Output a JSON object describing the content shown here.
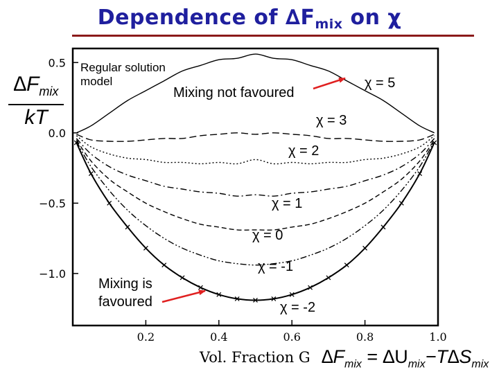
{
  "title": {
    "prefix": "Dependence of ∆F",
    "sub": "mix",
    "suffix": " on χ"
  },
  "y_axis_label": {
    "numerator": "∆F",
    "numerator_sub": "mix",
    "denominator": "kT"
  },
  "equation": {
    "lhs": "∆F",
    "lhs_sub": "mix",
    "mid": " = ∆U",
    "mid_sub": "mix",
    "rhs": "−T∆S",
    "rhs_sub": "mix"
  },
  "annotations": {
    "regular_solution": "Regular solution\nmodel",
    "mixing_not_favoured": "Mixing not favoured",
    "mixing_favoured": "Mixing is\nfavoured"
  },
  "colors": {
    "title": "#1f1f9e",
    "title_rule": "#8b1a1a",
    "arrow": "#e02020",
    "curves": "#000000"
  },
  "chart_data": {
    "type": "line",
    "title": "Dependence of ∆Fmix on χ",
    "xlabel": "Vol. Fraction G",
    "ylabel": "∆Fmix / kT",
    "xlim": [
      0.0,
      1.0
    ],
    "ylim": [
      -1.37,
      0.6
    ],
    "xticks": [
      0.2,
      0.4,
      0.6,
      0.8,
      1.0
    ],
    "xtick_labels": [
      "0.2",
      "0.4",
      "0.6",
      "0.8",
      "1.0"
    ],
    "yticks": [
      0.5,
      0.0,
      -0.5,
      -1.0
    ],
    "ytick_labels": [
      "0.5",
      "0.0",
      "−0.5",
      "−1.0"
    ],
    "grid": false,
    "x": [
      0.01,
      0.05,
      0.1,
      0.15,
      0.2,
      0.25,
      0.3,
      0.35,
      0.4,
      0.45,
      0.5,
      0.55,
      0.6,
      0.65,
      0.7,
      0.75,
      0.8,
      0.85,
      0.9,
      0.95,
      0.99
    ],
    "series": [
      {
        "name": "χ = 5",
        "label": "χ = 5",
        "dash": "solid",
        "values": [
          0.0,
          0.05,
          0.14,
          0.23,
          0.3,
          0.37,
          0.44,
          0.48,
          0.52,
          0.53,
          0.56,
          0.53,
          0.52,
          0.48,
          0.44,
          0.37,
          0.3,
          0.23,
          0.14,
          0.05,
          0.0
        ]
      },
      {
        "name": "χ = 3",
        "label": "χ = 3",
        "dash": "long-dash",
        "values": [
          -0.01,
          -0.05,
          -0.06,
          -0.06,
          -0.05,
          -0.04,
          -0.04,
          -0.02,
          -0.01,
          0.0,
          -0.01,
          0.0,
          -0.01,
          -0.02,
          -0.04,
          -0.04,
          -0.05,
          -0.06,
          -0.06,
          -0.05,
          -0.01
        ]
      },
      {
        "name": "χ = 2",
        "label": "χ = 2",
        "dash": "dotted",
        "values": [
          -0.02,
          -0.1,
          -0.15,
          -0.18,
          -0.19,
          -0.21,
          -0.21,
          -0.22,
          -0.21,
          -0.22,
          -0.19,
          -0.22,
          -0.21,
          -0.22,
          -0.21,
          -0.21,
          -0.19,
          -0.18,
          -0.15,
          -0.1,
          -0.02
        ]
      },
      {
        "name": "χ = 1",
        "label": "χ = 1",
        "dash": "dash-dot",
        "values": [
          -0.04,
          -0.15,
          -0.24,
          -0.3,
          -0.34,
          -0.38,
          -0.4,
          -0.42,
          -0.43,
          -0.45,
          -0.44,
          -0.45,
          -0.43,
          -0.42,
          -0.4,
          -0.38,
          -0.34,
          -0.3,
          -0.24,
          -0.15,
          -0.04
        ]
      },
      {
        "name": "χ = 0",
        "label": "χ = 0",
        "dash": "dash",
        "values": [
          -0.05,
          -0.2,
          -0.33,
          -0.42,
          -0.5,
          -0.56,
          -0.61,
          -0.65,
          -0.67,
          -0.69,
          -0.69,
          -0.69,
          -0.67,
          -0.65,
          -0.61,
          -0.56,
          -0.5,
          -0.42,
          -0.33,
          -0.2,
          -0.05
        ]
      },
      {
        "name": "χ = -1",
        "label": "χ = -1",
        "dash": "dash-dot-dot",
        "values": [
          -0.06,
          -0.24,
          -0.41,
          -0.55,
          -0.66,
          -0.75,
          -0.82,
          -0.87,
          -0.91,
          -0.93,
          -0.94,
          -0.93,
          -0.91,
          -0.87,
          -0.82,
          -0.75,
          -0.66,
          -0.55,
          -0.41,
          -0.24,
          -0.06
        ]
      },
      {
        "name": "χ = -2",
        "label": "χ = -2",
        "dash": "crosses",
        "values": [
          -0.07,
          -0.29,
          -0.5,
          -0.67,
          -0.82,
          -0.94,
          -1.03,
          -1.1,
          -1.15,
          -1.18,
          -1.19,
          -1.18,
          -1.15,
          -1.1,
          -1.03,
          -0.94,
          -0.82,
          -0.67,
          -0.5,
          -0.29,
          -0.07
        ]
      }
    ]
  }
}
